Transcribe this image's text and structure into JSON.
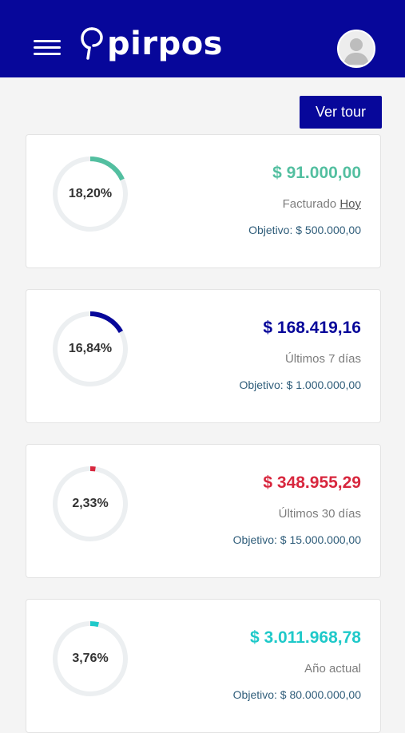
{
  "header": {
    "brand": "pirpos"
  },
  "toolbar": {
    "tour_label": "Ver tour"
  },
  "cards": [
    {
      "percent_label": "18,20%",
      "percent": 18.2,
      "amount": "$ 91.000,00",
      "period_prefix": "Facturado",
      "period_link": "Hoy",
      "goal": "Objetivo: $ 500.000,00",
      "color": "#53bfa0"
    },
    {
      "percent_label": "16,84%",
      "percent": 16.84,
      "amount": "$ 168.419,16",
      "period_prefix": "Últimos 7 días",
      "period_link": "",
      "goal": "Objetivo: $ 1.000.000,00",
      "color": "#07079a"
    },
    {
      "percent_label": "2,33%",
      "percent": 2.33,
      "amount": "$ 348.955,29",
      "period_prefix": "Últimos 30 días",
      "period_link": "",
      "goal": "Objetivo: $ 15.000.000,00",
      "color": "#d8273e"
    },
    {
      "percent_label": "3,76%",
      "percent": 3.76,
      "amount": "$ 3.011.968,78",
      "period_prefix": "Año actual",
      "period_link": "",
      "goal": "Objetivo: $ 80.000.000,00",
      "color": "#1fc9c9"
    }
  ],
  "colors": {
    "primary": "#07079a",
    "ring_track": "#eceff1"
  },
  "icons": {
    "menu": "hamburger-icon",
    "logo": "pin-logo-icon",
    "avatar": "user-avatar-icon"
  }
}
